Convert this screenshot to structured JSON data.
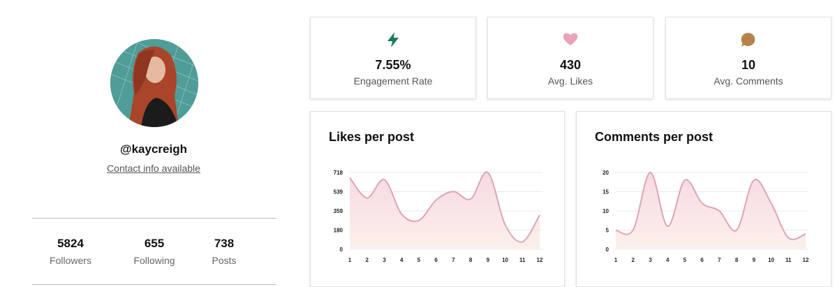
{
  "profile": {
    "handle": "@kaycreigh",
    "contact": "Contact info available",
    "stats": [
      {
        "value": "5824",
        "label": "Followers"
      },
      {
        "value": "655",
        "label": "Following"
      },
      {
        "value": "738",
        "label": "Posts"
      }
    ]
  },
  "metrics": [
    {
      "icon": "lightning-icon",
      "color": "#1a7a5e",
      "value": "7.55%",
      "label": "Engagement Rate"
    },
    {
      "icon": "heart-icon",
      "color": "#e9a3b8",
      "value": "430",
      "label": "Avg. Likes"
    },
    {
      "icon": "comment-icon",
      "color": "#b5834a",
      "value": "10",
      "label": "Avg. Comments"
    }
  ],
  "colors": {
    "line": "#e0a3b6",
    "fill_top": "#f6d6df",
    "fill_bottom": "#fbeee9",
    "grid": "#e8e8e8"
  },
  "chart_data": [
    {
      "type": "area",
      "title": "Likes per post",
      "x": [
        1,
        2,
        3,
        4,
        5,
        6,
        7,
        8,
        9,
        10,
        11,
        12
      ],
      "y_ticks": [
        0,
        180,
        359,
        539,
        718
      ],
      "ylim": [
        0,
        718
      ],
      "series": [
        {
          "values": [
            670,
            480,
            650,
            330,
            270,
            460,
            540,
            470,
            718,
            230,
            70,
            320
          ]
        }
      ]
    },
    {
      "type": "area",
      "title": "Comments per post",
      "x": [
        1,
        2,
        3,
        4,
        5,
        6,
        7,
        8,
        9,
        10,
        11,
        12
      ],
      "y_ticks": [
        0,
        5,
        10,
        15,
        20
      ],
      "ylim": [
        0,
        20
      ],
      "series": [
        {
          "values": [
            5,
            5,
            20,
            6,
            18,
            12,
            10,
            5,
            18,
            12,
            3,
            4
          ]
        }
      ]
    }
  ]
}
